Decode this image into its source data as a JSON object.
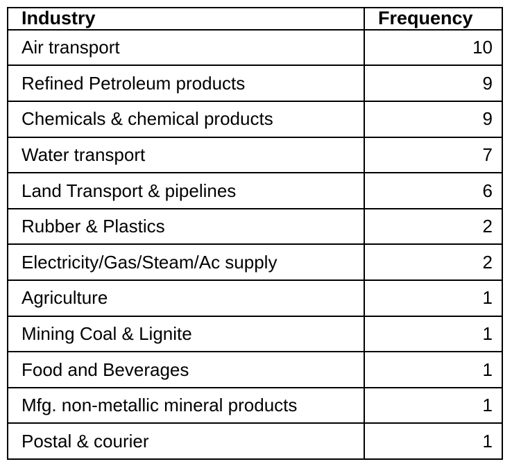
{
  "table": {
    "columns": [
      "Industry",
      "Frequency"
    ],
    "rows": [
      {
        "industry": "Air transport",
        "frequency": "10"
      },
      {
        "industry": "Refined Petroleum products",
        "frequency": "9"
      },
      {
        "industry": "Chemicals & chemical products",
        "frequency": "9"
      },
      {
        "industry": "Water transport",
        "frequency": "7"
      },
      {
        "industry": "Land Transport & pipelines",
        "frequency": "6"
      },
      {
        "industry": "Rubber & Plastics",
        "frequency": "2"
      },
      {
        "industry": "Electricity/Gas/Steam/Ac supply",
        "frequency": "2"
      },
      {
        "industry": "Agriculture",
        "frequency": "1"
      },
      {
        "industry": "Mining Coal & Lignite",
        "frequency": "1"
      },
      {
        "industry": "Food and Beverages",
        "frequency": "1"
      },
      {
        "industry": "Mfg. non-metallic mineral products",
        "frequency": "1"
      },
      {
        "industry": "Postal & courier",
        "frequency": "1"
      }
    ]
  },
  "colors": {
    "border": "#000000",
    "text": "#000000",
    "background": "#ffffff"
  },
  "chart_data": {
    "type": "table",
    "title": "",
    "columns": [
      "Industry",
      "Frequency"
    ],
    "categories": [
      "Air transport",
      "Refined Petroleum products",
      "Chemicals & chemical products",
      "Water transport",
      "Land Transport & pipelines",
      "Rubber & Plastics",
      "Electricity/Gas/Steam/Ac supply",
      "Agriculture",
      "Mining Coal & Lignite",
      "Food and Beverages",
      "Mfg. non-metallic mineral products",
      "Postal & courier"
    ],
    "values": [
      10,
      9,
      9,
      7,
      6,
      2,
      2,
      1,
      1,
      1,
      1,
      1
    ]
  }
}
